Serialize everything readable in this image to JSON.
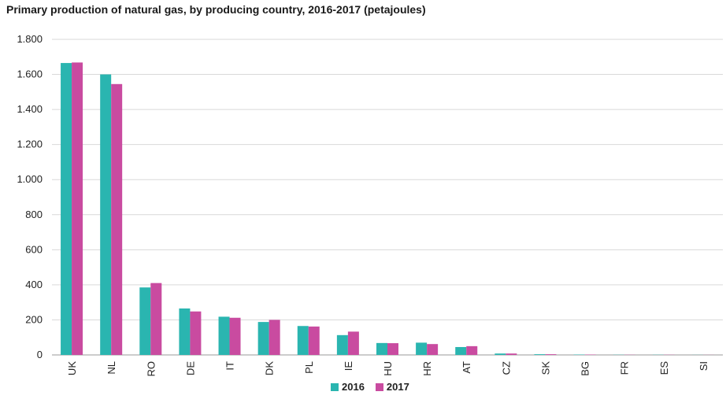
{
  "chart_data": {
    "type": "bar",
    "title": "Primary production of natural gas, by producing country, 2016-2017 (petajoules)",
    "categories": [
      "UK",
      "NL",
      "RO",
      "DE",
      "IT",
      "DK",
      "PL",
      "IE",
      "HU",
      "HR",
      "AT",
      "CZ",
      "SK",
      "BG",
      "FR",
      "ES",
      "SI"
    ],
    "series": [
      {
        "name": "2016",
        "color": "#2ab5b0",
        "values": [
          1665,
          1600,
          385,
          265,
          218,
          188,
          165,
          113,
          68,
          70,
          45,
          8,
          4,
          2,
          1,
          1,
          0.5
        ]
      },
      {
        "name": "2017",
        "color": "#c94ba0",
        "values": [
          1668,
          1545,
          410,
          248,
          212,
          200,
          162,
          133,
          67,
          62,
          50,
          8,
          4,
          2,
          1,
          1,
          0.5
        ]
      }
    ],
    "ylim": [
      0,
      1800
    ],
    "yticks": [
      0,
      200,
      400,
      600,
      800,
      1000,
      1200,
      1400,
      1600,
      1800
    ],
    "ytick_labels": [
      "0",
      "200",
      "400",
      "600",
      "800",
      "1.000",
      "1.200",
      "1.400",
      "1.600",
      "1.800"
    ],
    "xlabel": "",
    "ylabel": "",
    "grid": true,
    "legend_position": "bottom"
  }
}
